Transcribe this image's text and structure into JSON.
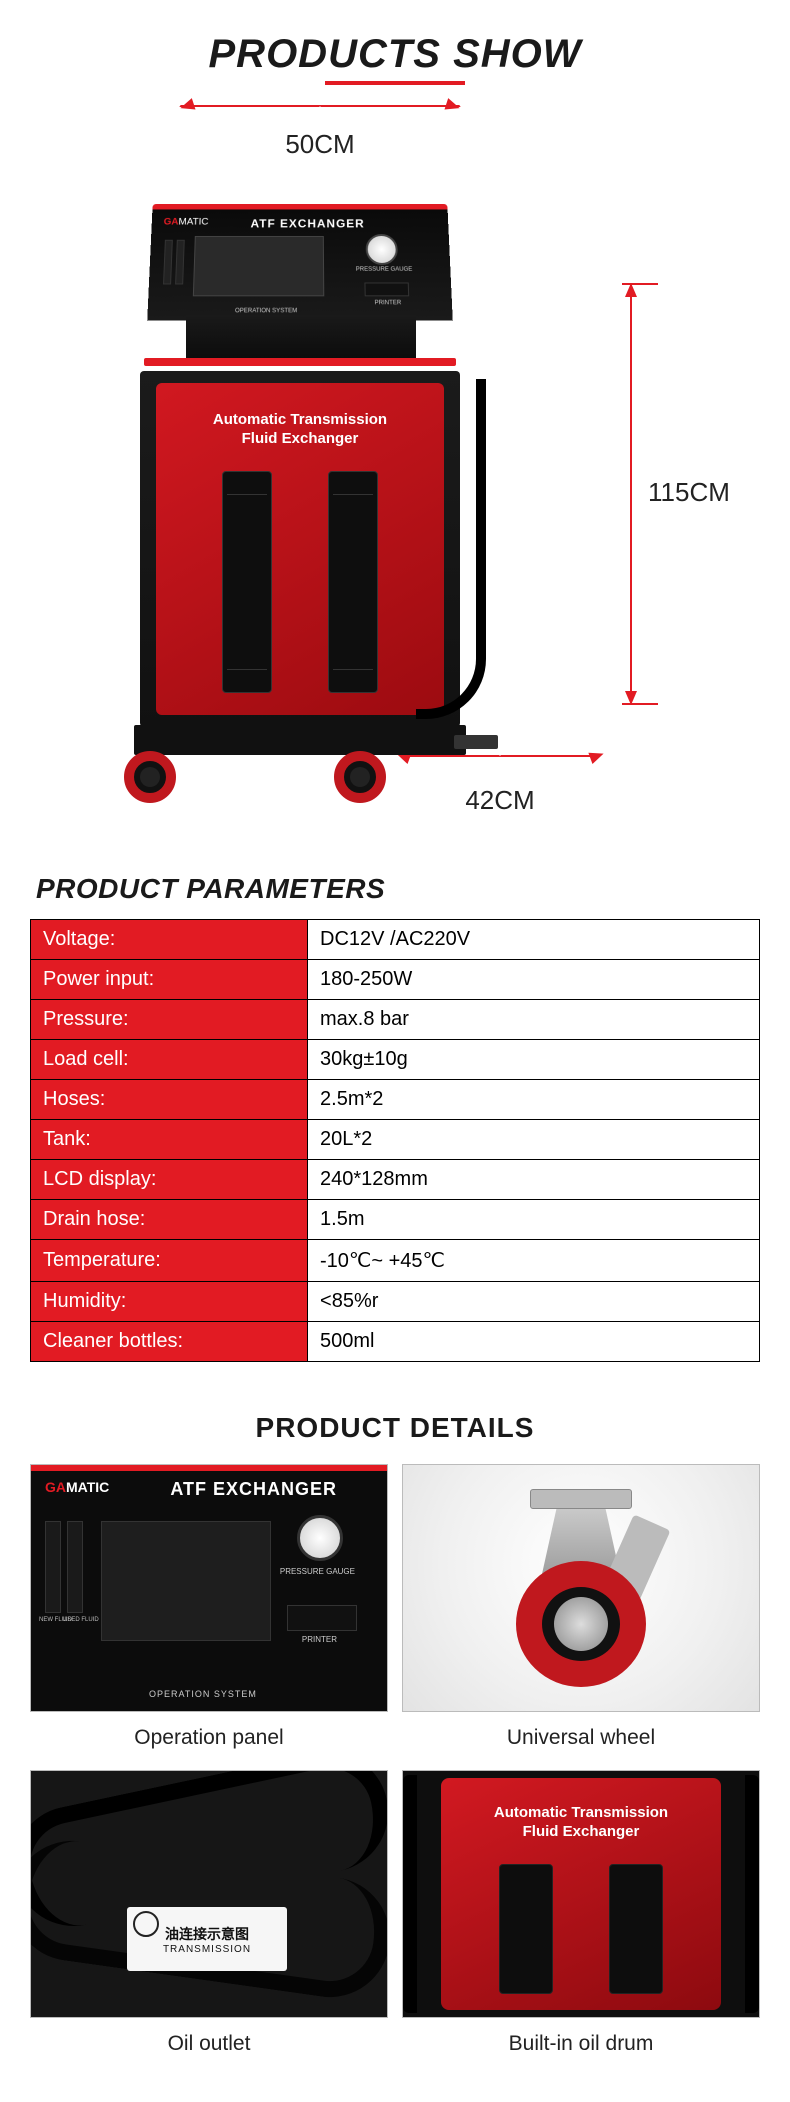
{
  "colors": {
    "accent": "#e21b23",
    "text": "#1a1a1a",
    "panel_bg": "#0c0c0c"
  },
  "section_titles": {
    "products_show": "PRODUCTS SHOW",
    "product_parameters": "PRODUCT PARAMETERS",
    "product_details": "PRODUCT DETAILS"
  },
  "dimensions": {
    "width": "50CM",
    "height": "115CM",
    "depth": "42CM"
  },
  "machine": {
    "brand_prefix": "GA",
    "brand_suffix": "MATIC",
    "panel_title": "ATF EXCHANGER",
    "gauge_label": "PRESSURE GAUGE",
    "printer_label": "PRINTER",
    "operation_label": "OPERATION SYSTEM",
    "front_label_line1": "Automatic Transmission",
    "front_label_line2": "Fluid Exchanger",
    "slot_label_new": "NEW FLUID",
    "slot_label_used": "USED FLUID"
  },
  "parameters": [
    {
      "key": "Voltage:",
      "value": "DC12V /AC220V"
    },
    {
      "key": "Power input:",
      "value": "180-250W"
    },
    {
      "key": "Pressure:",
      "value": "max.8 bar"
    },
    {
      "key": "Load cell:",
      "value": "30kg±10g"
    },
    {
      "key": "Hoses:",
      "value": "2.5m*2"
    },
    {
      "key": "Tank:",
      "value": "20L*2"
    },
    {
      "key": "LCD display:",
      "value": "240*128mm"
    },
    {
      "key": "Drain hose:",
      "value": "1.5m"
    },
    {
      "key": "Temperature:",
      "value": "-10℃~ +45℃"
    },
    {
      "key": "Humidity:",
      "value": "<85%r"
    },
    {
      "key": "Cleaner bottles:",
      "value": "500ml"
    }
  ],
  "details": {
    "tile1_caption": "Operation panel",
    "tile2_caption": "Universal wheel",
    "tile3_caption": "Oil outlet",
    "tile4_caption": "Built-in oil drum",
    "oil_outlet_label_cn": "油连接示意图",
    "oil_outlet_label_en": "TRANSMISSION"
  }
}
